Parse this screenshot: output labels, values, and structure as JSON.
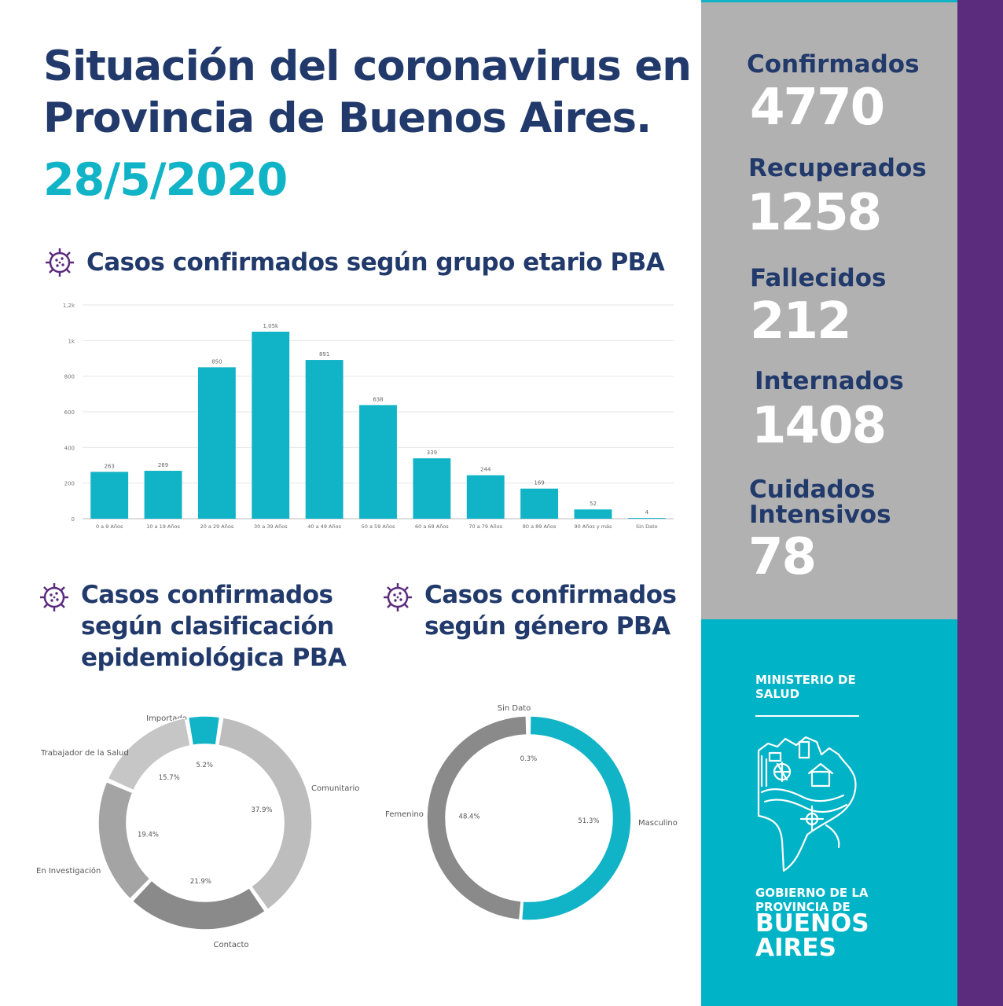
{
  "header": {
    "title_line1": "Situación del coronavirus en",
    "title_line2": "Provincia de Buenos Aires.",
    "date": "28/5/2020"
  },
  "sections": {
    "age": "Casos confirmados según grupo etario PBA",
    "epi_line1": "Casos confirmados",
    "epi_line2": "según clasificación",
    "epi_line3": "epidemiológica PBA",
    "gender_line1": "Casos confirmados",
    "gender_line2": "según género PBA"
  },
  "stats": [
    {
      "label": "Confirmados",
      "value": "4770"
    },
    {
      "label": "Recuperados",
      "value": "1258"
    },
    {
      "label": "Fallecidos",
      "value": "212"
    },
    {
      "label": "Internados",
      "value": "1408"
    },
    {
      "label_line1": "Cuidados",
      "label_line2": "Intensivos",
      "value": "78"
    }
  ],
  "branding": {
    "ministry_line1": "MINISTERIO DE",
    "ministry_line2": "SALUD",
    "gov_line1": "GOBIERNO DE LA",
    "gov_line2": "PROVINCIA DE",
    "gov_line3": "BUENOS",
    "gov_line4": "AIRES"
  },
  "colors": {
    "navy": "#213a6b",
    "teal": "#11b3c6",
    "gray_panel": "#b1b1b1",
    "purple": "#5b2c7e"
  },
  "chart_data": [
    {
      "type": "bar",
      "categories": [
        "0 a 9 Años",
        "10 a 19 Años",
        "20 a 29 Años",
        "30 a 39 Años",
        "40 a 49 Años",
        "50 a 59 Años",
        "60 a 69 Años",
        "70 a 79 Años",
        "80 a 89 Años",
        "90 Años y más",
        "Sin Dato"
      ],
      "values": [
        263,
        269,
        850,
        1050,
        891,
        638,
        339,
        244,
        169,
        52,
        4
      ],
      "value_labels": [
        "263",
        "269",
        "850",
        "1,05k",
        "891",
        "638",
        "339",
        "244",
        "169",
        "52",
        "4"
      ],
      "ylim": [
        0,
        1200
      ],
      "yticks": [
        0,
        200,
        400,
        600,
        800,
        1000,
        1200
      ],
      "ytick_labels": [
        "0",
        "200",
        "400",
        "600",
        "800",
        "1k",
        "1,2k"
      ],
      "grid": true,
      "color": "#11b3c6"
    },
    {
      "type": "pie",
      "variant": "donut",
      "labels": [
        "Importado",
        "Comunitario",
        "Contacto",
        "En Investigación",
        "Trabajador de la Salud"
      ],
      "values": [
        5.2,
        37.9,
        21.9,
        19.4,
        15.7
      ],
      "value_labels": [
        "5.2%",
        "37.9%",
        "21.9%",
        "19.4%",
        "15.7%"
      ],
      "colors": [
        "#11b3c6",
        "#bdbdbd",
        "#8a8a8a",
        "#a4a4a4",
        "#c6c6c6"
      ]
    },
    {
      "type": "pie",
      "variant": "donut",
      "labels": [
        "Sin Dato",
        "Masculino",
        "Femenino"
      ],
      "values": [
        0.3,
        51.3,
        48.4
      ],
      "value_labels": [
        "0.3%",
        "51.3%",
        "48.4%"
      ],
      "colors": [
        "#bdbdbd",
        "#11b3c6",
        "#8a8a8a"
      ]
    }
  ]
}
